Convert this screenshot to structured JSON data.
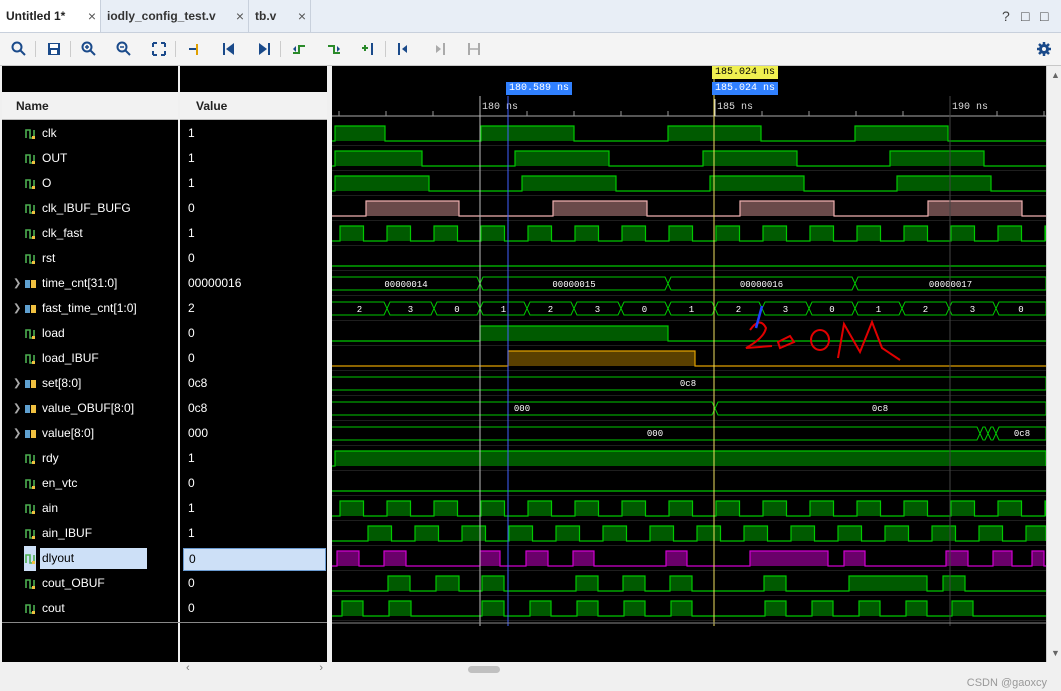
{
  "tabs": [
    {
      "label": "Untitled 1*",
      "active": true
    },
    {
      "label": "iodly_config_test.v",
      "active": false
    },
    {
      "label": "tb.v",
      "active": false
    }
  ],
  "window_controls": [
    "?",
    "□",
    "□"
  ],
  "toolbar": {
    "buttons": [
      "zoom-fit-icon",
      "save-icon",
      "zoom-in-icon",
      "zoom-out-icon",
      "zoom-full-icon",
      "go-to-cursor-icon",
      "first-edge-icon",
      "last-edge-icon",
      "prev-transition-icon",
      "next-transition-icon",
      "add-marker-icon",
      "prev-marker-icon",
      "next-marker-icon",
      "swap-cursors-icon",
      "settings-icon"
    ]
  },
  "columns": {
    "name": "Name",
    "value": "Value"
  },
  "signals": [
    {
      "name": "clk",
      "value": "1",
      "bus": false
    },
    {
      "name": "OUT",
      "value": "1",
      "bus": false
    },
    {
      "name": "O",
      "value": "1",
      "bus": false
    },
    {
      "name": "clk_IBUF_BUFG",
      "value": "0",
      "bus": false
    },
    {
      "name": "clk_fast",
      "value": "1",
      "bus": false
    },
    {
      "name": "rst",
      "value": "0",
      "bus": false
    },
    {
      "name": "time_cnt[31:0]",
      "value": "00000016",
      "bus": true
    },
    {
      "name": "fast_time_cnt[1:0]",
      "value": "2",
      "bus": true
    },
    {
      "name": "load",
      "value": "0",
      "bus": false
    },
    {
      "name": "load_IBUF",
      "value": "0",
      "bus": false
    },
    {
      "name": "set[8:0]",
      "value": "0c8",
      "bus": true
    },
    {
      "name": "value_OBUF[8:0]",
      "value": "0c8",
      "bus": true
    },
    {
      "name": "value[8:0]",
      "value": "000",
      "bus": true
    },
    {
      "name": "rdy",
      "value": "1",
      "bus": false
    },
    {
      "name": "en_vtc",
      "value": "0",
      "bus": false
    },
    {
      "name": "ain",
      "value": "1",
      "bus": false
    },
    {
      "name": "ain_IBUF",
      "value": "1",
      "bus": false
    },
    {
      "name": "dlyout",
      "value": "0",
      "bus": false,
      "selected": true
    },
    {
      "name": "cout_OBUF",
      "value": "0",
      "bus": false
    },
    {
      "name": "cout",
      "value": "0",
      "bus": false
    }
  ],
  "ruler": {
    "ticks": [
      "180 ns",
      "185 ns",
      "190 ns"
    ]
  },
  "markers": {
    "cursor_yellow": "185.024 ns",
    "cursor_blue_1": "180.589 ns",
    "cursor_blue_2": "185.024 ns"
  },
  "bus_labels": {
    "time_cnt": [
      "00000014",
      "00000015",
      "00000016",
      "00000017"
    ],
    "fast_time_cnt": [
      "2",
      "3",
      "0",
      "1",
      "2",
      "3",
      "0",
      "1",
      "2",
      "3",
      "0",
      "1",
      "2",
      "3",
      "0"
    ],
    "set": [
      "0c8"
    ],
    "value_OBUF": [
      "000",
      "0c8"
    ],
    "value": [
      "000",
      "0c8"
    ]
  },
  "annotation": "2ooM",
  "watermark": "CSDN @gaoxcy",
  "colors": {
    "wave_green": "#00c800",
    "wave_fill": "#005a00",
    "pink": "#f0b0b0",
    "purple": "#c000c0",
    "orange": "#e0a000"
  }
}
